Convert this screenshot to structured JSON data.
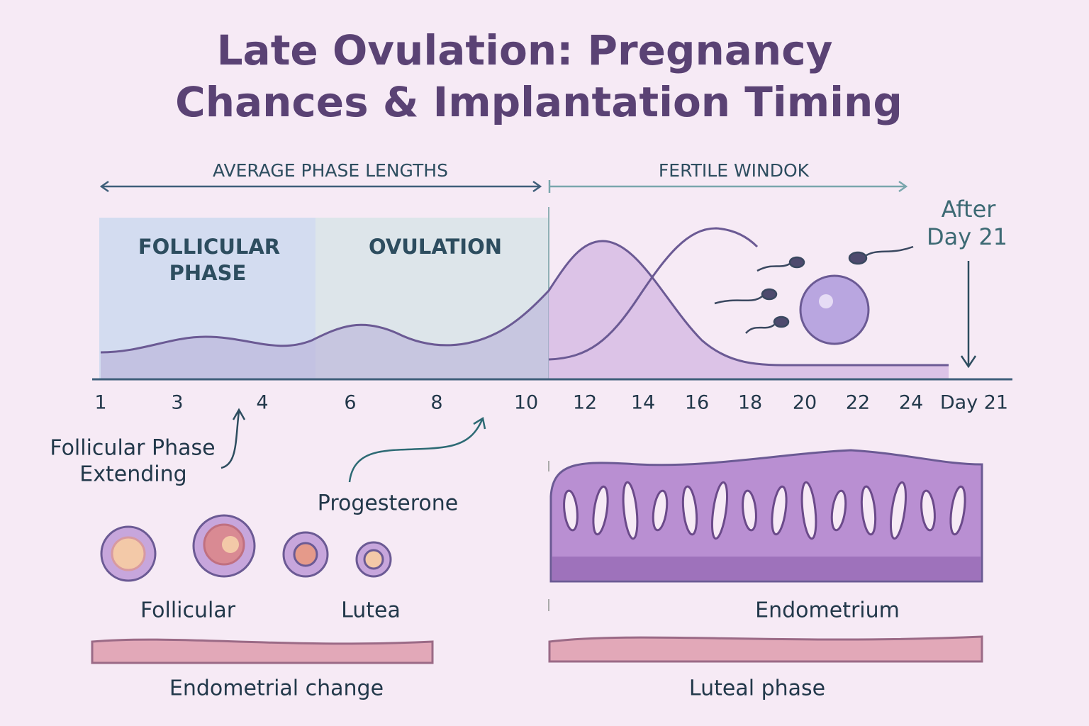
{
  "title": {
    "lines": [
      "Late Ovulation: Pregnancy",
      "Chances & Implantation Timing"
    ]
  },
  "timeline": {
    "left_range": "AVERAGE PHASE LENGTHS",
    "right_range": "FERTILE WINDOK",
    "phases": [
      {
        "lines": [
          "FOLLICULAR",
          "PHASE"
        ]
      },
      {
        "lines": [
          "OVULATION"
        ]
      }
    ],
    "marker": {
      "lines": [
        "After",
        "Day 21"
      ]
    },
    "day_labels": [
      "1",
      "3",
      "4",
      "6",
      "8",
      "10",
      "12",
      "14",
      "16",
      "18",
      "20",
      "22",
      "24",
      "Day 21"
    ]
  },
  "annotations": {
    "follicular_extending": {
      "lines": [
        "Follicular Phase",
        "Extending"
      ]
    },
    "progesterone": "Progesterone"
  },
  "illustrations": {
    "follicles_left": "Follicular",
    "follicles_right": "Lutea",
    "left_tissue": "Endometrial change",
    "endometrium": "Endometrium",
    "right_tissue": "Luteal phase"
  }
}
